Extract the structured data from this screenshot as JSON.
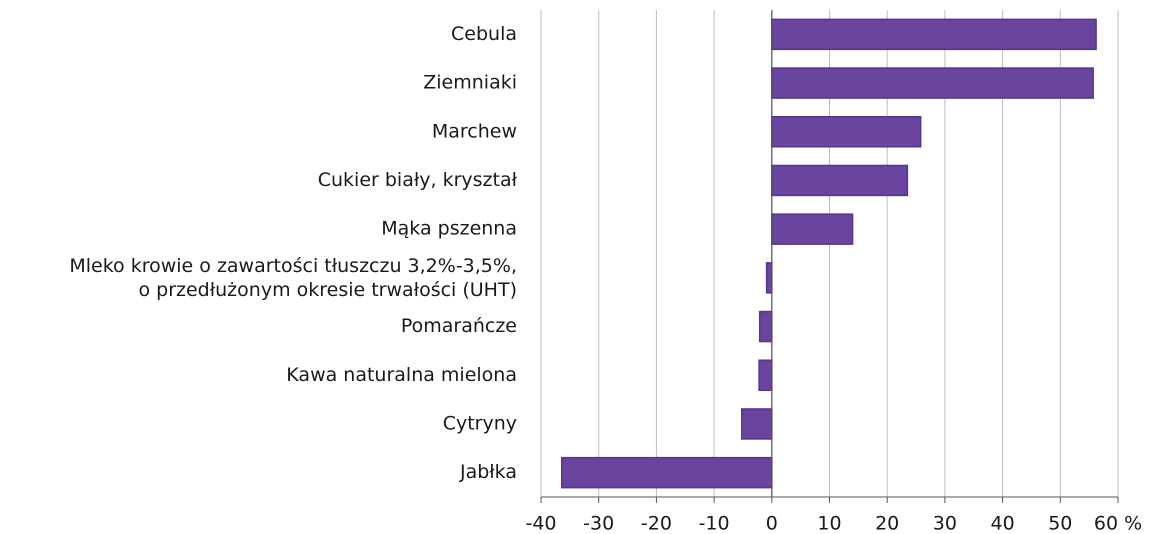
{
  "chart_data": {
    "type": "bar",
    "orientation": "horizontal",
    "categories": [
      "Cebula",
      "Ziemniaki",
      "Marchew",
      "Cukier biały, kryształ",
      "Mąka pszenna",
      [
        "Mleko krowie o zawartości tłuszczu 3,2%-3,5%,",
        "o przedłużonym okresie trwałości (UHT)"
      ],
      "Pomarańcze",
      "Kawa naturalna mielona",
      "Cytryny",
      "Jabłka"
    ],
    "values": [
      56.2,
      55.7,
      25.8,
      23.5,
      14.0,
      -0.9,
      -2.1,
      -2.2,
      -5.2,
      -36.4
    ],
    "color": "#6a45a0",
    "xlim": [
      -40,
      60
    ],
    "xticks": [
      -40,
      -30,
      -20,
      -10,
      0,
      10,
      20,
      30,
      40,
      50,
      {
        "value": 60,
        "label": "60 %"
      }
    ],
    "grid": true
  }
}
